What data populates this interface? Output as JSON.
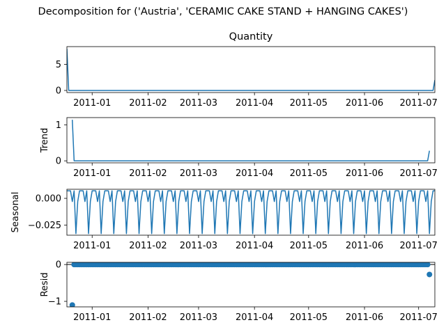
{
  "chart_data": {
    "type": "line",
    "title": "Decomposition for ('Austria', 'CERAMIC CAKE STAND + HANGING CAKES')",
    "x_range": [
      "2010-12-18",
      "2011-07-10"
    ],
    "x_ticks": [
      {
        "date": "2011-01-01",
        "label": "2011-01"
      },
      {
        "date": "2011-02-01",
        "label": "2011-02"
      },
      {
        "date": "2011-03-01",
        "label": "2011-03"
      },
      {
        "date": "2011-04-01",
        "label": "2011-04"
      },
      {
        "date": "2011-05-01",
        "label": "2011-05"
      },
      {
        "date": "2011-06-01",
        "label": "2011-06"
      },
      {
        "date": "2011-07-01",
        "label": "2011-07"
      }
    ],
    "panels": [
      {
        "id": "observed",
        "title": "Quantity",
        "ylabel": "",
        "kind": "line",
        "ylim": [
          -0.4,
          8.4
        ],
        "yticks": [
          {
            "value": 0,
            "label": "0"
          },
          {
            "value": 5,
            "label": "5"
          }
        ],
        "series": {
          "points": [
            [
              "2010-12-18",
              8.0
            ],
            [
              "2010-12-19",
              0.0
            ],
            [
              "2011-07-09",
              0.0
            ],
            [
              "2011-07-10",
              2.0
            ]
          ]
        }
      },
      {
        "id": "trend",
        "title": "",
        "ylabel": "Trend",
        "kind": "line",
        "ylim": [
          -0.055,
          1.2
        ],
        "yticks": [
          {
            "value": 0,
            "label": "0"
          },
          {
            "value": 1,
            "label": "1"
          }
        ],
        "series": {
          "points": [
            [
              "2010-12-21",
              1.14
            ],
            [
              "2010-12-22",
              0.0
            ],
            [
              "2011-07-06",
              0.0
            ],
            [
              "2011-07-07",
              0.28
            ]
          ]
        }
      },
      {
        "id": "seasonal",
        "title": "",
        "ylabel": "Seasonal",
        "kind": "seasonal",
        "ylim": [
          -0.0345,
          0.0085
        ],
        "yticks": [
          {
            "value": 0,
            "label": "0.000"
          },
          {
            "value": -0.025,
            "label": "−0.025"
          }
        ],
        "series": {
          "start": "2010-12-18",
          "end": "2011-07-10",
          "weekly_pattern": [
            0.007,
            0.007,
            0.007,
            -0.003,
            0.007,
            -0.033,
            -0.003
          ]
        }
      },
      {
        "id": "resid",
        "title": "",
        "ylabel": "Resid",
        "kind": "scatter",
        "ylim": [
          -1.15,
          0.06
        ],
        "yticks": [
          {
            "value": 0,
            "label": "0"
          },
          {
            "value": -1,
            "label": "−1"
          }
        ],
        "series": {
          "baseline_start": "2010-12-22",
          "baseline_end": "2011-07-06",
          "baseline_value": 0.0,
          "extra_points": [
            [
              "2010-12-21",
              -1.1
            ],
            [
              "2011-07-07",
              -0.27
            ]
          ]
        }
      }
    ],
    "colors": {
      "line": "#1f77b4",
      "axis": "#000000"
    }
  }
}
